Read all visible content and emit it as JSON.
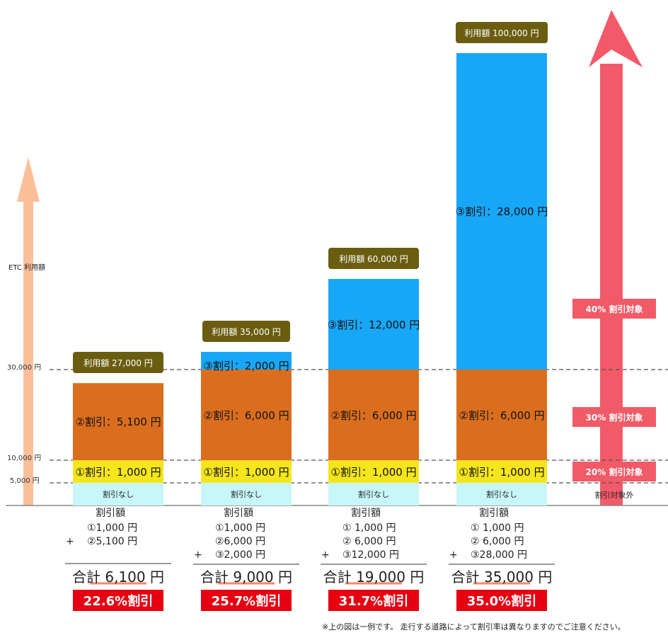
{
  "chart_data": {
    "type": "bar",
    "stacked": true,
    "ylabel": "ETC 利用額",
    "y_ticks": [
      {
        "value": 5000,
        "label": "5,000 円"
      },
      {
        "value": 10000,
        "label": "10,000 円"
      },
      {
        "value": 30000,
        "label": "30,000 円"
      }
    ],
    "colors": {
      "none": "#c8f7fa",
      "tier1": "#f5e51c",
      "tier2": "#da6e1e",
      "tier3": "#18a7f7",
      "pill": "#6b5d10",
      "rate": "#e60012",
      "tier_badge": "#f15a67",
      "left_arrow": "#fbbf9a",
      "right_arrow": "#f25a6a"
    },
    "bars": [
      {
        "usage": 27000,
        "usage_label": "利用額 27,000 円",
        "none_label": "割引なし",
        "segments": [
          {
            "tier": "tier1",
            "from": 5000,
            "to": 10000,
            "label": "①割引：1,000 円"
          },
          {
            "tier": "tier2",
            "from": 10000,
            "to": 27000,
            "label": "②割引：5,100 円"
          }
        ],
        "breakdown_title": "割引額",
        "breakdown_lines": [
          "①1,000 円",
          "+ ②5,100 円"
        ],
        "total": "合計 6,100 円",
        "rate": "22.6%割引"
      },
      {
        "usage": 35000,
        "usage_label": "利用額 35,000 円",
        "none_label": "割引なし",
        "segments": [
          {
            "tier": "tier1",
            "from": 5000,
            "to": 10000,
            "label": "①割引：1,000 円"
          },
          {
            "tier": "tier2",
            "from": 10000,
            "to": 30000,
            "label": "②割引：6,000 円"
          },
          {
            "tier": "tier3",
            "from": 30000,
            "to": 35000,
            "label": "③割引：2,000 円"
          }
        ],
        "breakdown_title": "割引額",
        "breakdown_lines": [
          "①1,000 円",
          "②6,000 円",
          "+ ③2,000 円"
        ],
        "total": "合計 9,000 円",
        "rate": "25.7%割引"
      },
      {
        "usage": 60000,
        "usage_label": "利用額 60,000 円",
        "none_label": "割引なし",
        "segments": [
          {
            "tier": "tier1",
            "from": 5000,
            "to": 10000,
            "label": "①割引：1,000 円"
          },
          {
            "tier": "tier2",
            "from": 10000,
            "to": 30000,
            "label": "②割引：6,000 円"
          },
          {
            "tier": "tier3",
            "from": 30000,
            "to": 60000,
            "label": "③割引：12,000 円"
          }
        ],
        "breakdown_title": "割引額",
        "breakdown_lines": [
          "① 1,000 円",
          "② 6,000 円",
          "+ ③12,000 円"
        ],
        "total": "合計 19,000 円",
        "rate": "31.7%割引"
      },
      {
        "usage": 100000,
        "usage_label": "利用額 100,000 円",
        "none_label": "割引なし",
        "segments": [
          {
            "tier": "tier1",
            "from": 5000,
            "to": 10000,
            "label": "①割引：1,000 円"
          },
          {
            "tier": "tier2",
            "from": 10000,
            "to": 30000,
            "label": "②割引：6,000 円"
          },
          {
            "tier": "tier3",
            "from": 30000,
            "to": 100000,
            "label": "③割引：28,000 円"
          }
        ],
        "breakdown_title": "割引額",
        "breakdown_lines": [
          "① 1,000 円",
          "② 6,000 円",
          "+ ③28,000 円"
        ],
        "total": "合計 35,000 円",
        "rate": "35.0%割引"
      }
    ],
    "tier_labels": [
      {
        "label": "40% 割引対象",
        "value": 40000
      },
      {
        "label": "30% 割引対象",
        "value": 20000
      },
      {
        "label": "20% 割引対象",
        "value": 7500
      },
      {
        "label": "割引対象外",
        "value": 2500
      }
    ],
    "note": "※上の図は一例です。 走行する道路によって割引率は異なりますのでご注意ください。"
  }
}
